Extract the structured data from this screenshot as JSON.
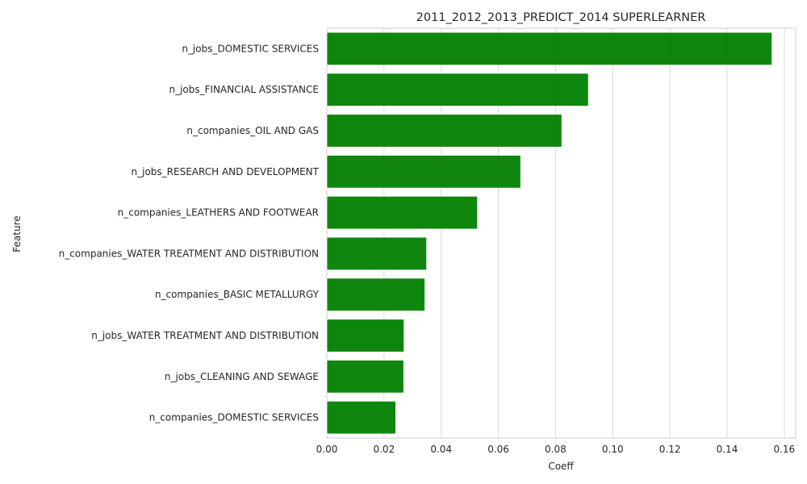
{
  "chart_data": {
    "type": "bar",
    "orientation": "horizontal",
    "title": "2011_2012_2013_PREDICT_2014 SUPERLEARNER",
    "xlabel": "Coeff",
    "ylabel": "Feature",
    "xlim": [
      0,
      0.164
    ],
    "xticks": [
      "0.00",
      "0.02",
      "0.04",
      "0.06",
      "0.08",
      "0.10",
      "0.12",
      "0.14",
      "0.16"
    ],
    "grid": true,
    "bar_color": "#008000",
    "categories": [
      "n_jobs_DOMESTIC SERVICES",
      "n_jobs_FINANCIAL ASSISTANCE",
      "n_companies_OIL AND GAS",
      "n_jobs_RESEARCH AND DEVELOPMENT",
      "n_companies_LEATHERS AND FOOTWEAR",
      "n_companies_WATER TREATMENT AND DISTRIBUTION",
      "n_companies_BASIC METALLURGY",
      "n_jobs_WATER TREATMENT AND DISTRIBUTION",
      "n_jobs_CLEANING AND SEWAGE",
      "n_companies_DOMESTIC SERVICES"
    ],
    "values": [
      0.1557,
      0.0915,
      0.0822,
      0.0678,
      0.0527,
      0.0349,
      0.0343,
      0.027,
      0.0269,
      0.0241
    ]
  }
}
